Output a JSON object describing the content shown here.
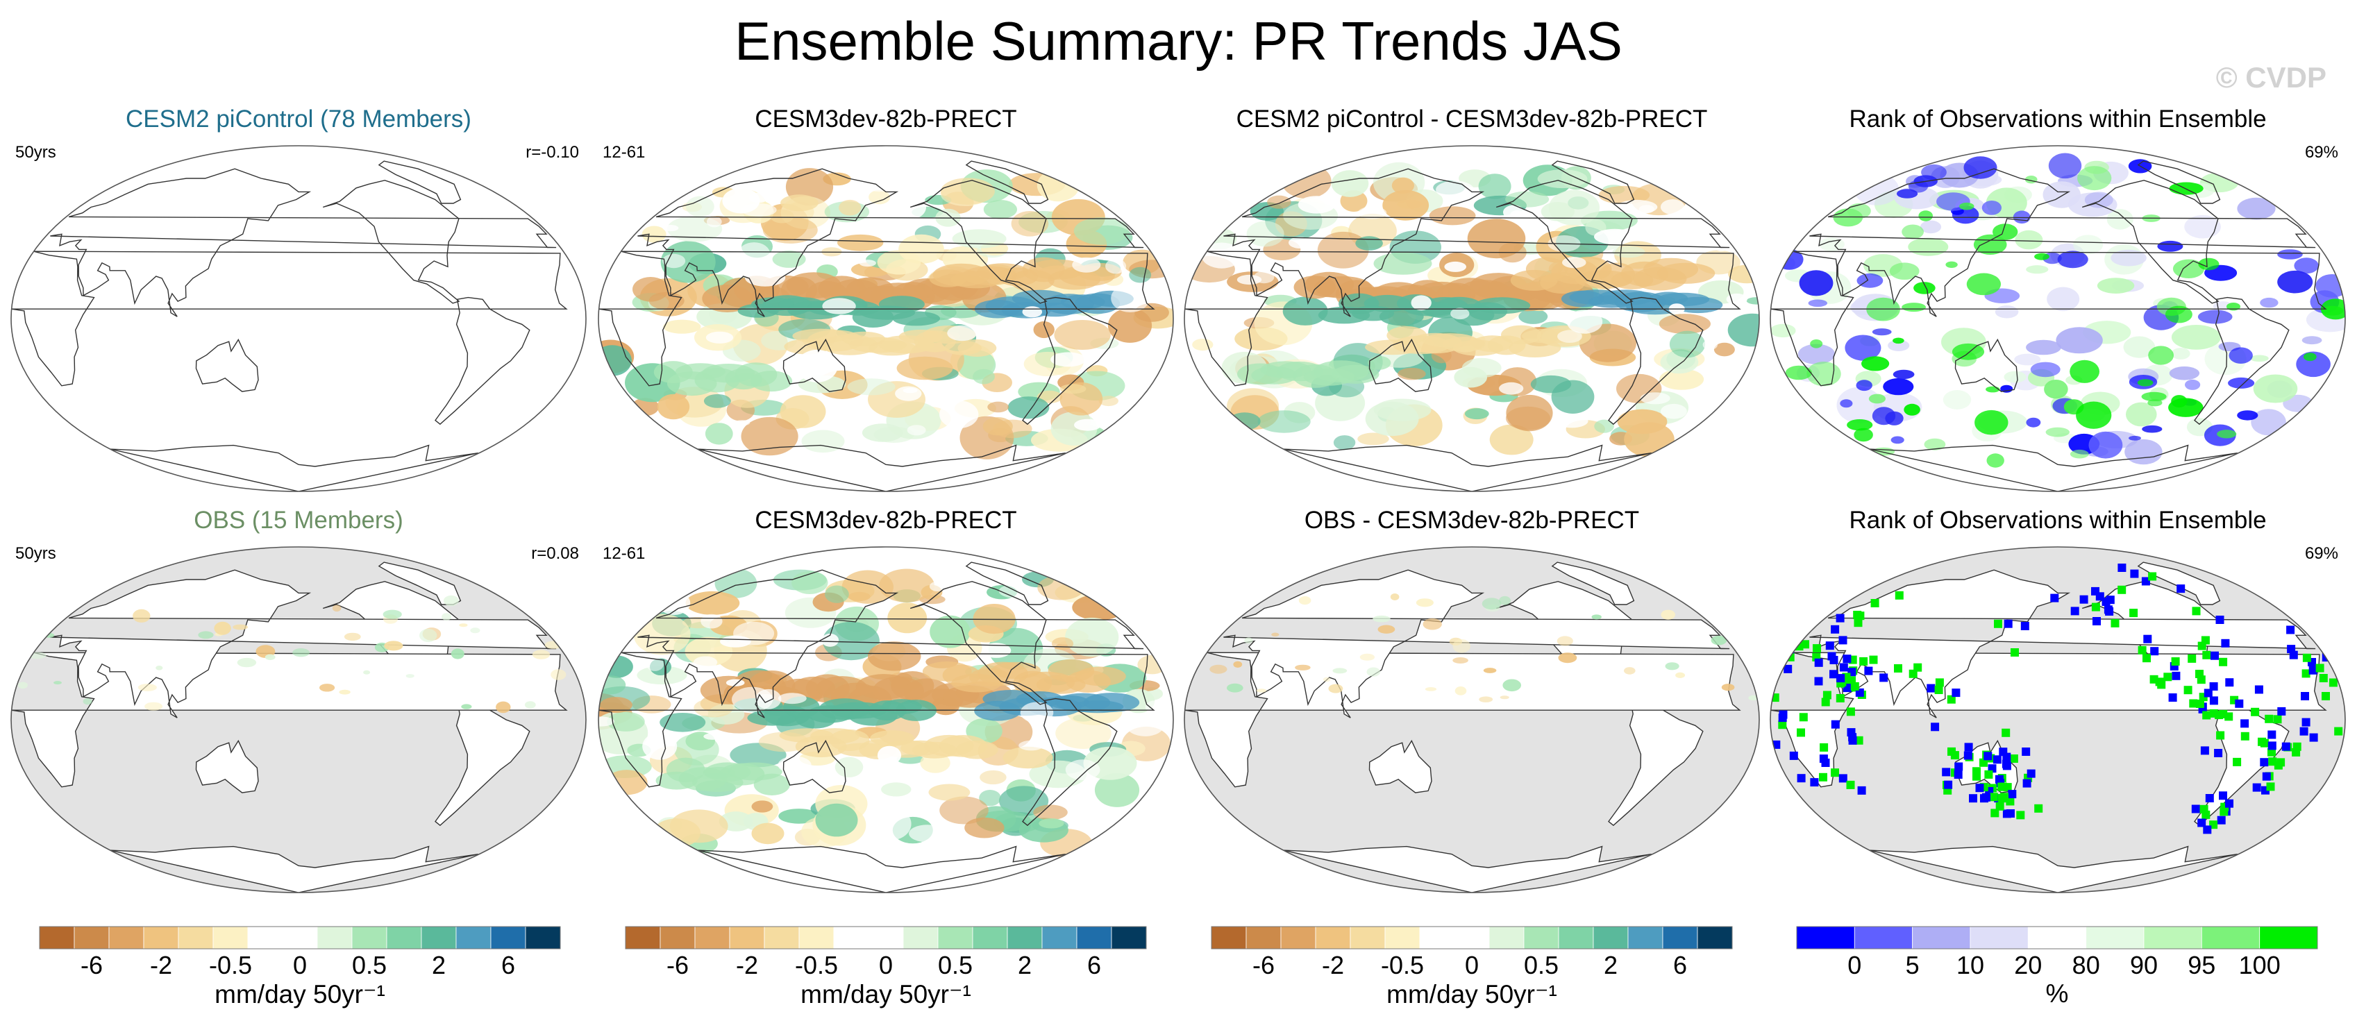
{
  "figure": {
    "title": "Ensemble Summary: PR Trends JAS",
    "watermark": "© CVDP"
  },
  "panels": [
    {
      "id": "r1c1",
      "title": "CESM2 piControl (78 Members)",
      "title_color": "#1f6e8c",
      "left_label": "50yrs",
      "right_label": "r=-0.10",
      "map_bg": "#ffffff",
      "field": "none"
    },
    {
      "id": "r1c2",
      "title": "CESM3dev-82b-PRECT",
      "title_color": "#000000",
      "left_label": "12-61",
      "right_label": "",
      "map_bg": "#ffffff",
      "field": "trend"
    },
    {
      "id": "r1c3",
      "title": "CESM2 piControl - CESM3dev-82b-PRECT",
      "title_color": "#000000",
      "left_label": "",
      "right_label": "",
      "map_bg": "#ffffff",
      "field": "trend"
    },
    {
      "id": "r1c4",
      "title": "Rank of Observations within Ensemble",
      "title_color": "#000000",
      "left_label": "",
      "right_label": "69%",
      "map_bg": "#ffffff",
      "field": "rank"
    },
    {
      "id": "r2c1",
      "title": "OBS (15 Members)",
      "title_color": "#6b8f64",
      "left_label": "50yrs",
      "right_label": "r=0.08",
      "map_bg": "#e3e3e3",
      "field": "sparse"
    },
    {
      "id": "r2c2",
      "title": "CESM3dev-82b-PRECT",
      "title_color": "#000000",
      "left_label": "12-61",
      "right_label": "",
      "map_bg": "#ffffff",
      "field": "trend"
    },
    {
      "id": "r2c3",
      "title": "OBS - CESM3dev-82b-PRECT",
      "title_color": "#000000",
      "left_label": "",
      "right_label": "",
      "map_bg": "#e3e3e3",
      "field": "sparse"
    },
    {
      "id": "r2c4",
      "title": "Rank of Observations within Ensemble",
      "title_color": "#000000",
      "left_label": "",
      "right_label": "69%",
      "map_bg": "#e3e3e3",
      "field": "rankland"
    }
  ],
  "colorbars": {
    "trend": {
      "colors": [
        "#b4692d",
        "#cc8a4a",
        "#dfa463",
        "#efc37f",
        "#f5dca0",
        "#fcf1c4",
        "#ffffff",
        "#ffffff",
        "#dff5dc",
        "#a8e6b5",
        "#7fd3a6",
        "#5ab99b",
        "#4e9cc0",
        "#1f6eaa",
        "#043a5e"
      ],
      "tick_labels": [
        "-6",
        "-2",
        "-0.5",
        "0",
        "0.5",
        "2",
        "6"
      ],
      "units": "mm/day 50yr⁻¹"
    },
    "rank": {
      "colors": [
        "#0000ff",
        "#6060ff",
        "#aeaef5",
        "#dedef8",
        "#ffffff",
        "#e4fae4",
        "#bdf7b8",
        "#7cf27a",
        "#00ee00"
      ],
      "tick_labels": [
        "0",
        "5",
        "10",
        "20",
        "80",
        "90",
        "95",
        "100"
      ],
      "units": "%"
    }
  },
  "chart_data": {
    "type": "heatmap",
    "title": "Ensemble Summary: PR Trends JAS",
    "variable": "PR Trends JAS",
    "trend_units": "mm/day 50yr⁻¹",
    "trend_levels": [
      -6,
      -2,
      -0.5,
      0,
      0.5,
      2,
      6
    ],
    "rank_units": "%",
    "rank_levels": [
      0,
      5,
      10,
      20,
      80,
      90,
      95,
      100
    ],
    "pattern_correlation": [
      {
        "panel": "CESM2 piControl (78 Members)",
        "r": -0.1
      },
      {
        "panel": "OBS (15 Members)",
        "r": 0.08
      }
    ],
    "rank_summary": [
      {
        "panel": "Rank of Observations within Ensemble (row 1)",
        "percent": 69
      },
      {
        "panel": "Rank of Observations within Ensemble (row 2)",
        "percent": 69
      }
    ]
  }
}
